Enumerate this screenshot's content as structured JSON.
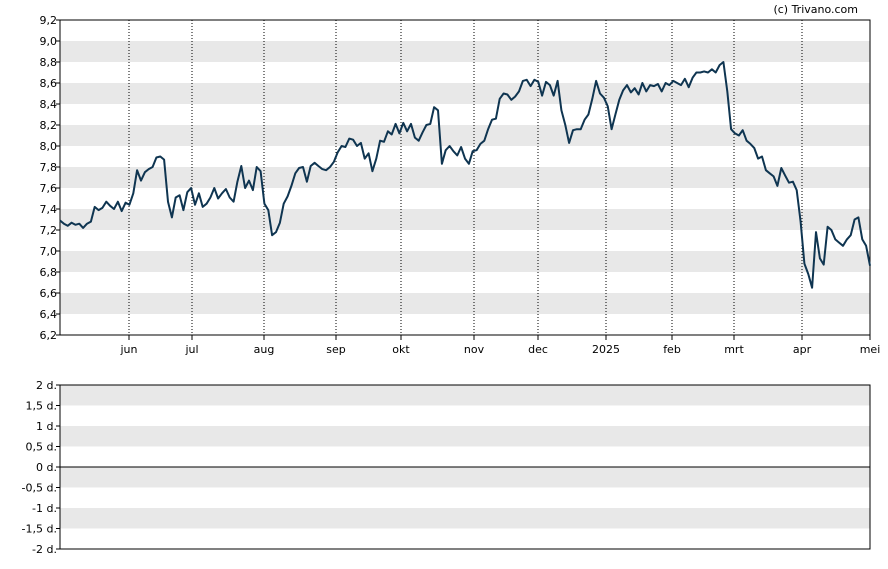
{
  "copyright": "(c) Trivano.com",
  "colors": {
    "line": "#0f3551",
    "band": "#e8e8e8",
    "frame": "#000000",
    "vgrid": "#000000",
    "zero": "#000000"
  },
  "chart_data": [
    {
      "type": "line",
      "title": "",
      "xlabel": "",
      "ylabel": "",
      "ylim": [
        6.2,
        9.2
      ],
      "y_ticks": [
        "6,2",
        "6,4",
        "6,6",
        "6,8",
        "7,0",
        "7,2",
        "7,4",
        "7,6",
        "7,8",
        "8,0",
        "8,2",
        "8,4",
        "8,6",
        "8,8",
        "9,0",
        "9,2"
      ],
      "x_ticks": [
        "jun",
        "jul",
        "aug",
        "sep",
        "okt",
        "nov",
        "dec",
        "2025",
        "feb",
        "mrt",
        "apr",
        "mei"
      ],
      "grid": "horizontal bands, dotted vertical lines at month ticks",
      "series": [
        {
          "name": "",
          "x_start": "mei 2024",
          "x_end": "mei 2025",
          "values": [
            7.29,
            7.26,
            7.24,
            7.27,
            7.25,
            7.26,
            7.22,
            7.26,
            7.28,
            7.42,
            7.39,
            7.41,
            7.47,
            7.43,
            7.4,
            7.47,
            7.38,
            7.46,
            7.44,
            7.55,
            7.77,
            7.67,
            7.75,
            7.78,
            7.8,
            7.89,
            7.9,
            7.87,
            7.47,
            7.32,
            7.51,
            7.53,
            7.39,
            7.56,
            7.6,
            7.44,
            7.55,
            7.42,
            7.45,
            7.51,
            7.6,
            7.5,
            7.55,
            7.59,
            7.51,
            7.47,
            7.66,
            7.81,
            7.6,
            7.67,
            7.58,
            7.8,
            7.76,
            7.45,
            7.39,
            7.15,
            7.18,
            7.27,
            7.45,
            7.52,
            7.62,
            7.74,
            7.79,
            7.8,
            7.66,
            7.81,
            7.84,
            7.81,
            7.78,
            7.77,
            7.8,
            7.85,
            7.94,
            8.0,
            7.99,
            8.07,
            8.06,
            8.0,
            8.03,
            7.88,
            7.93,
            7.76,
            7.88,
            8.05,
            8.04,
            8.14,
            8.11,
            8.21,
            8.12,
            8.22,
            8.14,
            8.21,
            8.08,
            8.05,
            8.13,
            8.2,
            8.21,
            8.37,
            8.34,
            7.83,
            7.96,
            8.0,
            7.95,
            7.91,
            7.99,
            7.88,
            7.83,
            7.95,
            7.96,
            8.02,
            8.05,
            8.16,
            8.25,
            8.26,
            8.45,
            8.5,
            8.49,
            8.44,
            8.47,
            8.52,
            8.62,
            8.63,
            8.57,
            8.63,
            8.61,
            8.48,
            8.61,
            8.58,
            8.48,
            8.62,
            8.34,
            8.2,
            8.03,
            8.15,
            8.16,
            8.16,
            8.25,
            8.3,
            8.45,
            8.62,
            8.5,
            8.46,
            8.38,
            8.16,
            8.3,
            8.44,
            8.53,
            8.58,
            8.51,
            8.55,
            8.49,
            8.6,
            8.52,
            8.58,
            8.57,
            8.59,
            8.52,
            8.6,
            8.58,
            8.62,
            8.6,
            8.58,
            8.64,
            8.56,
            8.65,
            8.7,
            8.7,
            8.71,
            8.7,
            8.73,
            8.7,
            8.77,
            8.8,
            8.52,
            8.16,
            8.12,
            8.1,
            8.15,
            8.05,
            8.02,
            7.98,
            7.88,
            7.9,
            7.77,
            7.74,
            7.71,
            7.62,
            7.79,
            7.72,
            7.65,
            7.66,
            7.58,
            7.28,
            6.88,
            6.78,
            6.65,
            7.18,
            6.93,
            6.87,
            7.23,
            7.2,
            7.11,
            7.08,
            7.05,
            7.11,
            7.15,
            7.3,
            7.32,
            7.11,
            7.05,
            6.86
          ]
        }
      ]
    },
    {
      "type": "line",
      "title": "",
      "xlabel": "",
      "ylabel": "",
      "ylim": [
        -2,
        2
      ],
      "y_ticks": [
        "2 d.",
        "1,5 d.",
        "1 d.",
        "0,5 d.",
        "0 d.",
        "-0,5 d.",
        "-1 d.",
        "-1,5 d.",
        "-2 d."
      ],
      "grid": "horizontal bands",
      "series": []
    }
  ]
}
